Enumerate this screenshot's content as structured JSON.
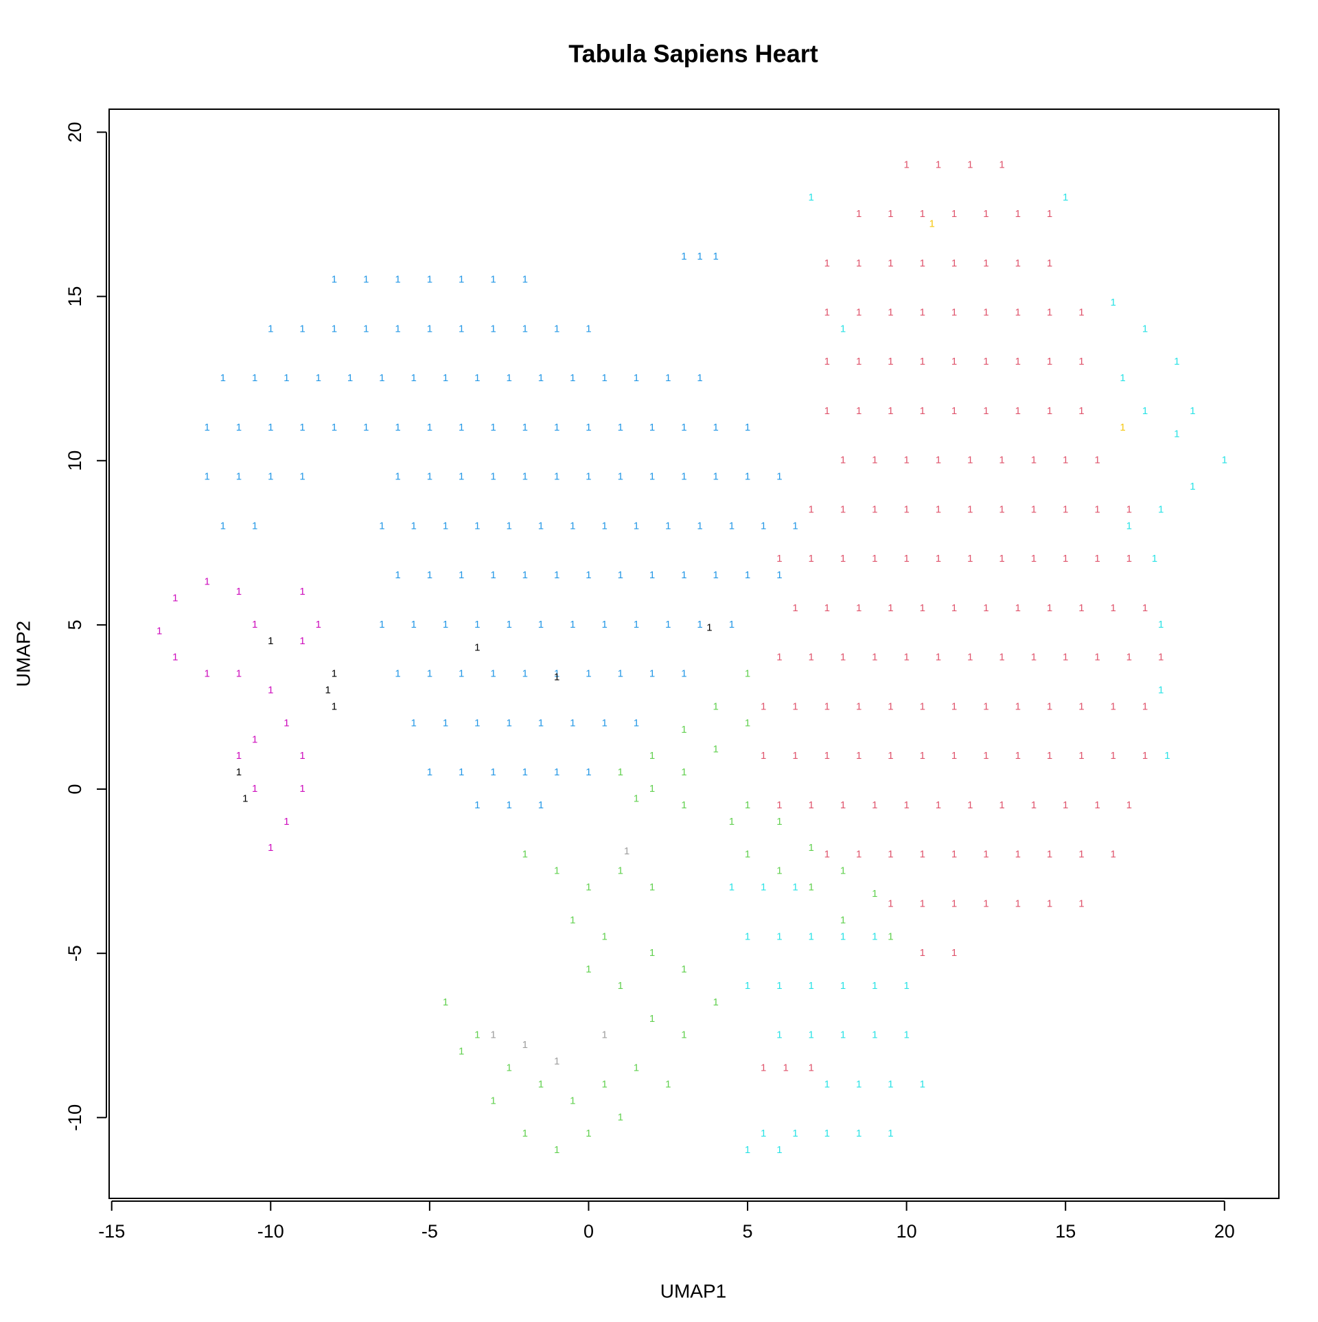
{
  "chart_data": {
    "type": "scatter",
    "title": "Tabula Sapiens Heart",
    "x_label": "UMAP1",
    "y_label": "UMAP2",
    "marker": "1",
    "xlim": [
      -15.08,
      21.71
    ],
    "ylim": [
      -12.46,
      20.7
    ],
    "xticks": [
      -15,
      -10,
      -5,
      0,
      5,
      10,
      15,
      20
    ],
    "yticks": [
      -10,
      -5,
      0,
      5,
      10,
      15,
      20
    ],
    "series": [
      {
        "color": "#2297E6",
        "x": [
          -8,
          -7,
          -6,
          -5,
          -4,
          -3,
          -2,
          -10,
          -9,
          -8,
          -7,
          -6,
          -5,
          -4,
          -3,
          -2,
          -1,
          0,
          -11.5,
          -10.5,
          -9.5,
          -8.5,
          -7.5,
          -6.5,
          -5.5,
          -4.5,
          -3.5,
          -2.5,
          -1.5,
          -0.5,
          0.5,
          1.5,
          2.5,
          3.5,
          -12,
          -11,
          -10,
          -9,
          -8,
          -7,
          -6,
          -5,
          -4,
          -3,
          -2,
          -1,
          0,
          1,
          2,
          3,
          4,
          5,
          -12,
          -11,
          -10,
          -9,
          -6,
          -5,
          -4,
          -3,
          -2,
          -1,
          0,
          1,
          2,
          3,
          4,
          5,
          6,
          -11.5,
          -10.5,
          -6.5,
          -5.5,
          -4.5,
          -3.5,
          -2.5,
          -1.5,
          -0.5,
          0.5,
          1.5,
          2.5,
          3.5,
          4.5,
          5.5,
          6.5,
          -6,
          -5,
          -4,
          -3,
          -2,
          -1,
          0,
          1,
          2,
          3,
          4,
          5,
          6,
          -6.5,
          -5.5,
          -4.5,
          -3.5,
          -2.5,
          -1.5,
          -0.5,
          0.5,
          1.5,
          2.5,
          3.5,
          4.5,
          -6,
          -5,
          -4,
          -3,
          -2,
          -1,
          0,
          1,
          2,
          3,
          -5.5,
          -4.5,
          -3.5,
          -2.5,
          -1.5,
          -0.5,
          0.5,
          1.5,
          -5,
          -4,
          -3,
          -2,
          -1,
          0,
          -3.5,
          -2.5,
          -1.5,
          3,
          3.5,
          4
        ],
        "y": [
          15.5,
          15.5,
          15.5,
          15.5,
          15.5,
          15.5,
          15.5,
          14,
          14,
          14,
          14,
          14,
          14,
          14,
          14,
          14,
          14,
          14,
          12.5,
          12.5,
          12.5,
          12.5,
          12.5,
          12.5,
          12.5,
          12.5,
          12.5,
          12.5,
          12.5,
          12.5,
          12.5,
          12.5,
          12.5,
          12.5,
          11,
          11,
          11,
          11,
          11,
          11,
          11,
          11,
          11,
          11,
          11,
          11,
          11,
          11,
          11,
          11,
          11,
          11,
          9.5,
          9.5,
          9.5,
          9.5,
          9.5,
          9.5,
          9.5,
          9.5,
          9.5,
          9.5,
          9.5,
          9.5,
          9.5,
          9.5,
          9.5,
          9.5,
          9.5,
          8,
          8,
          8,
          8,
          8,
          8,
          8,
          8,
          8,
          8,
          8,
          8,
          8,
          8,
          8,
          8,
          6.5,
          6.5,
          6.5,
          6.5,
          6.5,
          6.5,
          6.5,
          6.5,
          6.5,
          6.5,
          6.5,
          6.5,
          6.5,
          5,
          5,
          5,
          5,
          5,
          5,
          5,
          5,
          5,
          5,
          5,
          5,
          3.5,
          3.5,
          3.5,
          3.5,
          3.5,
          3.5,
          3.5,
          3.5,
          3.5,
          3.5,
          2,
          2,
          2,
          2,
          2,
          2,
          2,
          2,
          0.5,
          0.5,
          0.5,
          0.5,
          0.5,
          0.5,
          -0.5,
          -0.5,
          -0.5,
          16.2,
          16.2,
          16.2
        ]
      },
      {
        "color": "#DF536B",
        "x": [
          10,
          11,
          12,
          13,
          8.5,
          9.5,
          10.5,
          11.5,
          12.5,
          13.5,
          14.5,
          7.5,
          8.5,
          9.5,
          10.5,
          11.5,
          12.5,
          13.5,
          14.5,
          7.5,
          8.5,
          9.5,
          10.5,
          11.5,
          12.5,
          13.5,
          14.5,
          15.5,
          7.5,
          8.5,
          9.5,
          10.5,
          11.5,
          12.5,
          13.5,
          14.5,
          15.5,
          7.5,
          8.5,
          9.5,
          10.5,
          11.5,
          12.5,
          13.5,
          14.5,
          15.5,
          8,
          9,
          10,
          11,
          12,
          13,
          14,
          15,
          16,
          7,
          8,
          9,
          10,
          11,
          12,
          13,
          14,
          15,
          16,
          17,
          6,
          7,
          8,
          9,
          10,
          11,
          12,
          13,
          14,
          15,
          16,
          17,
          6.5,
          7.5,
          8.5,
          9.5,
          10.5,
          11.5,
          12.5,
          13.5,
          14.5,
          15.5,
          16.5,
          17.5,
          6,
          7,
          8,
          9,
          10,
          11,
          12,
          13,
          14,
          15,
          16,
          17,
          18,
          5.5,
          6.5,
          7.5,
          8.5,
          9.5,
          10.5,
          11.5,
          12.5,
          13.5,
          14.5,
          15.5,
          16.5,
          17.5,
          5.5,
          6.5,
          7.5,
          8.5,
          9.5,
          10.5,
          11.5,
          12.5,
          13.5,
          14.5,
          15.5,
          16.5,
          17.5,
          6,
          7,
          8,
          9,
          10,
          11,
          12,
          13,
          14,
          15,
          16,
          17,
          7.5,
          8.5,
          9.5,
          10.5,
          11.5,
          12.5,
          13.5,
          14.5,
          15.5,
          16.5,
          9.5,
          10.5,
          11.5,
          12.5,
          13.5,
          14.5,
          15.5,
          10.5,
          11.5,
          5.5,
          6.2,
          7
        ],
        "y": [
          19,
          19,
          19,
          19,
          17.5,
          17.5,
          17.5,
          17.5,
          17.5,
          17.5,
          17.5,
          16,
          16,
          16,
          16,
          16,
          16,
          16,
          16,
          14.5,
          14.5,
          14.5,
          14.5,
          14.5,
          14.5,
          14.5,
          14.5,
          14.5,
          13,
          13,
          13,
          13,
          13,
          13,
          13,
          13,
          13,
          11.5,
          11.5,
          11.5,
          11.5,
          11.5,
          11.5,
          11.5,
          11.5,
          11.5,
          10,
          10,
          10,
          10,
          10,
          10,
          10,
          10,
          10,
          8.5,
          8.5,
          8.5,
          8.5,
          8.5,
          8.5,
          8.5,
          8.5,
          8.5,
          8.5,
          8.5,
          7,
          7,
          7,
          7,
          7,
          7,
          7,
          7,
          7,
          7,
          7,
          7,
          5.5,
          5.5,
          5.5,
          5.5,
          5.5,
          5.5,
          5.5,
          5.5,
          5.5,
          5.5,
          5.5,
          5.5,
          4,
          4,
          4,
          4,
          4,
          4,
          4,
          4,
          4,
          4,
          4,
          4,
          4,
          2.5,
          2.5,
          2.5,
          2.5,
          2.5,
          2.5,
          2.5,
          2.5,
          2.5,
          2.5,
          2.5,
          2.5,
          2.5,
          1,
          1,
          1,
          1,
          1,
          1,
          1,
          1,
          1,
          1,
          1,
          1,
          1,
          -0.5,
          -0.5,
          -0.5,
          -0.5,
          -0.5,
          -0.5,
          -0.5,
          -0.5,
          -0.5,
          -0.5,
          -0.5,
          -0.5,
          -2,
          -2,
          -2,
          -2,
          -2,
          -2,
          -2,
          -2,
          -2,
          -2,
          -3.5,
          -3.5,
          -3.5,
          -3.5,
          -3.5,
          -3.5,
          -3.5,
          -5,
          -5,
          -8.5,
          -8.5,
          -8.5
        ]
      },
      {
        "color": "#28E2E5",
        "x": [
          16.5,
          17.5,
          18.5,
          19,
          18.5,
          17.5,
          16.8,
          17,
          18,
          19,
          20,
          17.8,
          18,
          18,
          18.2,
          4.5,
          5.5,
          6.5,
          5,
          6,
          7,
          8,
          9,
          5,
          6,
          7,
          8,
          9,
          10,
          6,
          7,
          8,
          9,
          10,
          7.5,
          8.5,
          9.5,
          10.5,
          5.5,
          6.5,
          7.5,
          8.5,
          9.5,
          5,
          6,
          7,
          15,
          8
        ],
        "y": [
          14.8,
          14,
          13,
          11.5,
          10.8,
          11.5,
          12.5,
          8,
          8.5,
          9.2,
          10,
          7,
          5,
          3,
          1,
          -3,
          -3,
          -3,
          -4.5,
          -4.5,
          -4.5,
          -4.5,
          -4.5,
          -6,
          -6,
          -6,
          -6,
          -6,
          -6,
          -7.5,
          -7.5,
          -7.5,
          -7.5,
          -7.5,
          -9,
          -9,
          -9,
          -9,
          -10.5,
          -10.5,
          -10.5,
          -10.5,
          -10.5,
          -11,
          -11,
          18,
          18,
          14
        ]
      },
      {
        "color": "#61D04F",
        "x": [
          1,
          2,
          3,
          4,
          5,
          2,
          3,
          4,
          5,
          3,
          1.5,
          5,
          6,
          7,
          8,
          9,
          9.5,
          5,
          6,
          7,
          8,
          4.5,
          -2,
          -1,
          0,
          1,
          2,
          -0.5,
          0.5,
          2,
          3,
          4,
          0,
          1,
          2,
          3,
          -4.5,
          -3.5,
          -2.5,
          -1.5,
          -0.5,
          0.5,
          1.5,
          2.5,
          -2,
          -1,
          0,
          1,
          -3,
          -4
        ],
        "y": [
          0.5,
          1,
          1.8,
          2.5,
          3.5,
          0,
          0.5,
          1.2,
          2,
          -0.5,
          -0.3,
          -0.5,
          -1,
          -1.8,
          -2.5,
          -3.2,
          -4.5,
          -2,
          -2.5,
          -3,
          -4,
          -1,
          -2,
          -2.5,
          -3,
          -2.5,
          -3,
          -4,
          -4.5,
          -5,
          -5.5,
          -6.5,
          -5.5,
          -6,
          -7,
          -7.5,
          -6.5,
          -7.5,
          -8.5,
          -9,
          -9.5,
          -9,
          -8.5,
          -9,
          -10.5,
          -11,
          -10.5,
          -10,
          -9.5,
          -8
        ]
      },
      {
        "color": "#CD0BBC",
        "x": [
          -13.5,
          -13,
          -12,
          -11,
          -10.5,
          -12,
          -11,
          -13,
          -9,
          -8.5,
          -9,
          -10,
          -9.5,
          -10.5,
          -9,
          -10.5,
          -9.5,
          -10,
          -9,
          -11
        ],
        "y": [
          4.8,
          5.8,
          6.3,
          6,
          5,
          3.5,
          3.5,
          4,
          6,
          5,
          4.5,
          3,
          2,
          1.5,
          1,
          0,
          -1,
          -1.8,
          0,
          1
        ]
      },
      {
        "color": "#000000",
        "x": [
          -8,
          -8,
          -8.2,
          -11,
          -10.8,
          -10,
          -3.5,
          -1,
          3.8
        ],
        "y": [
          3.5,
          2.5,
          3,
          0.5,
          -0.3,
          4.5,
          4.3,
          3.4,
          4.9
        ]
      },
      {
        "color": "#9E9E9E",
        "x": [
          1.2,
          -2,
          -1,
          -3,
          0.5
        ],
        "y": [
          -1.9,
          -7.8,
          -8.3,
          -7.5,
          -7.5
        ]
      },
      {
        "color": "#F5C710",
        "x": [
          10.8,
          16.8
        ],
        "y": [
          17.2,
          11
        ]
      }
    ]
  }
}
